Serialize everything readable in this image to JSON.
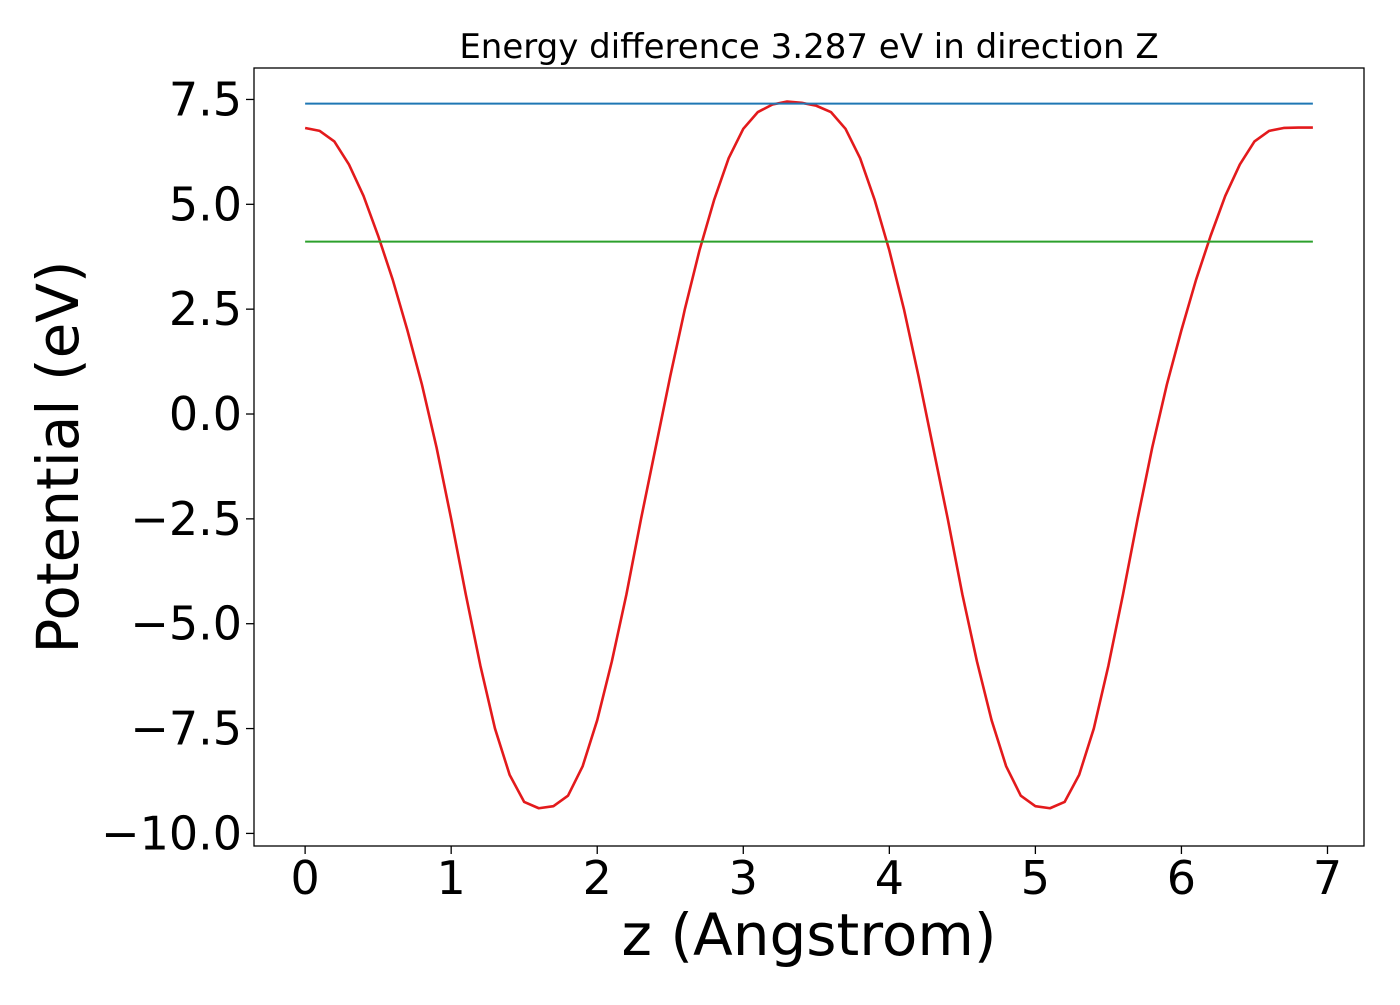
{
  "chart_data": {
    "type": "line",
    "title": "Energy difference 3.287 eV in direction Z",
    "xlabel": "z (Angstrom)",
    "ylabel": "Potential (eV)",
    "xlim": [
      -0.35,
      7.25
    ],
    "ylim": [
      -10.3,
      8.25
    ],
    "xticks": [
      0,
      1,
      2,
      3,
      4,
      5,
      6,
      7
    ],
    "xtick_labels": [
      "0",
      "1",
      "2",
      "3",
      "4",
      "5",
      "6",
      "7"
    ],
    "yticks": [
      -10.0,
      -7.5,
      -5.0,
      -2.5,
      0.0,
      2.5,
      5.0,
      7.5
    ],
    "ytick_labels": [
      "−10.0",
      "−7.5",
      "−5.0",
      "−2.5",
      "0.0",
      "2.5",
      "5.0",
      "7.5"
    ],
    "grid": false,
    "legend": "none",
    "series": [
      {
        "color": "#e31a1c",
        "x": [
          0,
          0.1,
          0.2,
          0.3,
          0.4,
          0.5,
          0.6,
          0.7,
          0.8,
          0.9,
          1.0,
          1.1,
          1.2,
          1.3,
          1.4,
          1.5,
          1.6,
          1.7,
          1.8,
          1.9,
          2.0,
          2.1,
          2.2,
          2.3,
          2.4,
          2.5,
          2.6,
          2.7,
          2.8,
          2.9,
          3.0,
          3.1,
          3.2,
          3.3,
          3.4,
          3.5,
          3.6,
          3.7,
          3.8,
          3.9,
          4.0,
          4.1,
          4.2,
          4.3,
          4.4,
          4.5,
          4.6,
          4.7,
          4.8,
          4.9,
          5.0,
          5.1,
          5.2,
          5.3,
          5.4,
          5.5,
          5.6,
          5.7,
          5.8,
          5.9,
          6.0,
          6.1,
          6.2,
          6.3,
          6.4,
          6.5,
          6.6,
          6.7,
          6.8,
          6.9
        ],
        "y": [
          6.82,
          6.75,
          6.5,
          5.95,
          5.2,
          4.25,
          3.2,
          2.0,
          0.7,
          -0.8,
          -2.5,
          -4.3,
          -6.0,
          -7.5,
          -8.6,
          -9.25,
          -9.4,
          -9.35,
          -9.1,
          -8.4,
          -7.3,
          -5.9,
          -4.3,
          -2.5,
          -0.8,
          0.9,
          2.5,
          3.9,
          5.1,
          6.1,
          6.8,
          7.2,
          7.38,
          7.45,
          7.42,
          7.35,
          7.2,
          6.8,
          6.1,
          5.1,
          3.9,
          2.5,
          0.9,
          -0.8,
          -2.5,
          -4.3,
          -5.9,
          -7.3,
          -8.4,
          -9.1,
          -9.35,
          -9.4,
          -9.25,
          -8.6,
          -7.5,
          -6.0,
          -4.3,
          -2.5,
          -0.8,
          0.7,
          2.0,
          3.2,
          4.25,
          5.2,
          5.95,
          6.5,
          6.75,
          6.82,
          6.83,
          6.83
        ]
      },
      {
        "color": "#1f77b4",
        "x": [
          0,
          6.9
        ],
        "y": [
          7.4,
          7.4
        ]
      },
      {
        "color": "#2ca02c",
        "x": [
          0,
          6.9
        ],
        "y": [
          4.11,
          4.11
        ]
      }
    ]
  }
}
